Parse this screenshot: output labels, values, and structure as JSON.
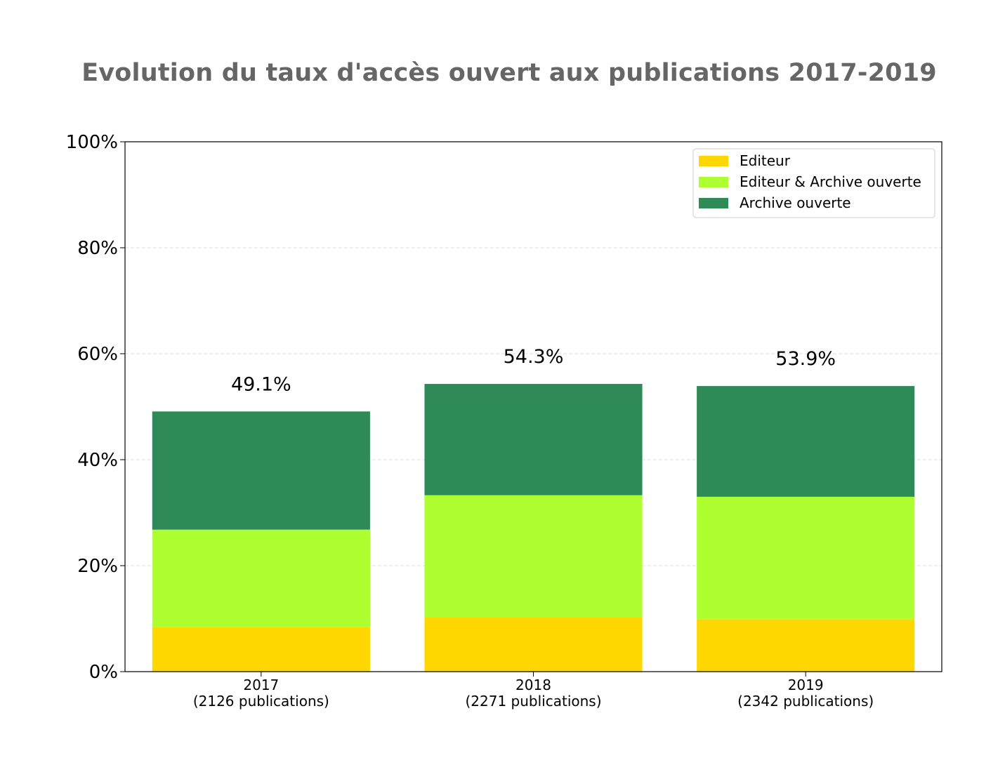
{
  "chart_data": {
    "type": "bar",
    "stacked": true,
    "title": "Evolution du taux d'accès ouvert aux publications 2017-2019",
    "xlabel": "",
    "ylabel": "",
    "ylim": [
      0,
      100
    ],
    "yticks": [
      0,
      20,
      40,
      60,
      80,
      100
    ],
    "ytick_labels": [
      "0%",
      "20%",
      "40%",
      "60%",
      "80%",
      "100%"
    ],
    "grid": true,
    "legend_position": "top-right",
    "categories": [
      {
        "year": "2017",
        "count_label": "(2126 publications)"
      },
      {
        "year": "2018",
        "count_label": "(2271 publications)"
      },
      {
        "year": "2019",
        "count_label": "(2342 publications)"
      }
    ],
    "series": [
      {
        "name": "Editeur",
        "color": "#FFD700",
        "values": [
          8.4,
          10.2,
          9.9
        ]
      },
      {
        "name": "Editeur & Archive ouverte",
        "color": "#ADFF2F",
        "values": [
          18.4,
          23.1,
          23.1
        ]
      },
      {
        "name": "Archive ouverte",
        "color": "#2E8B57",
        "values": [
          22.3,
          21.0,
          20.9
        ]
      }
    ],
    "total_labels": [
      "49.1%",
      "54.3%",
      "53.9%"
    ],
    "totals": [
      49.1,
      54.3,
      53.9
    ]
  }
}
